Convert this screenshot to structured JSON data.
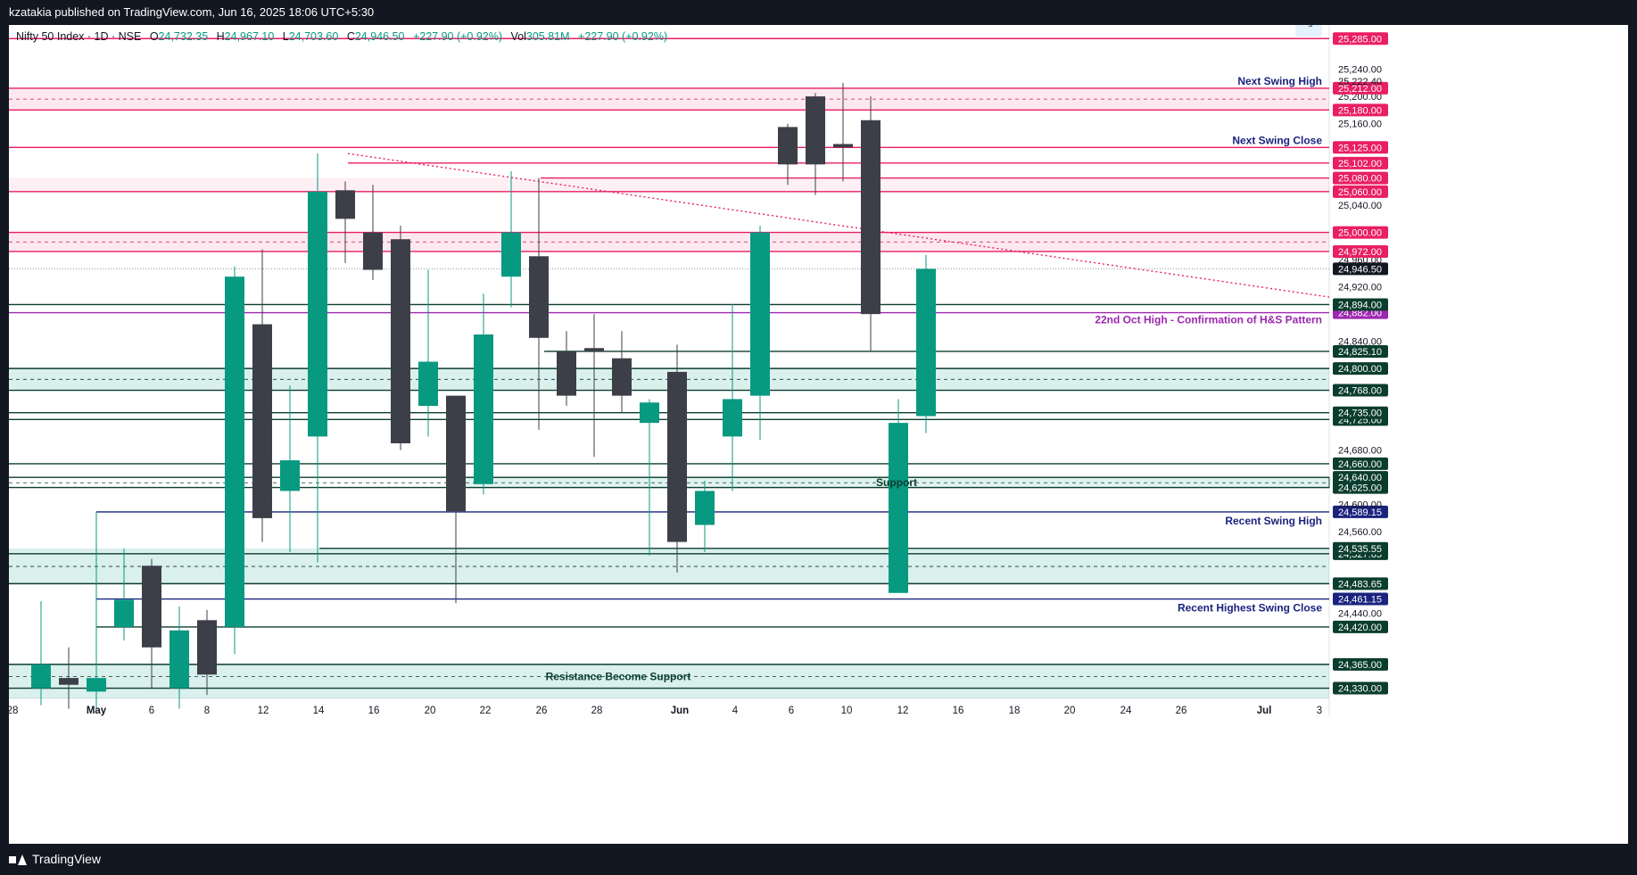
{
  "header": {
    "published_text": "kzatakia published on TradingView.com, Jun 16, 2025 18:06 UTC+5:30"
  },
  "legend": {
    "symbol": "Nifty 50 Index · 1D · NSE",
    "o_label": "O",
    "o_value": "24,732.35",
    "h_label": "H",
    "h_value": "24,967.10",
    "l_label": "L",
    "l_value": "24,703.60",
    "c_label": "C",
    "c_value": "24,946.50",
    "change": "+227.90 (+0.92%)",
    "vol_label": "Vol",
    "vol_value": "305.81M",
    "vol_change": "+227.90 (+0.92%)"
  },
  "footer": {
    "brand": "TradingView"
  },
  "colors": {
    "up": "#089981",
    "down": "#3d3f48",
    "resistance": "#e91e63",
    "support": "#0b3d2e",
    "swing": "#1a237e",
    "hs": "#9c27b0"
  },
  "chart_data": {
    "type": "candlestick",
    "y_axis_ticks": [
      24330,
      24365,
      24420,
      24440,
      24461.15,
      24483.65,
      24527.65,
      24535.55,
      24560,
      24589.15,
      24600,
      24625,
      24640,
      24660,
      24680,
      24725,
      24735,
      24768,
      24800,
      24825.1,
      24840,
      24882,
      24894,
      24920,
      24946.5,
      24960,
      24972,
      25000,
      25040,
      25060,
      25080,
      25102,
      25125,
      25160,
      25180,
      25200,
      25212,
      25222.4,
      25240,
      25285
    ],
    "y_axis_labels": [
      "24,330.00",
      "24,365.00",
      "24,420.00",
      "24,440.00",
      "24,461.15",
      "24,483.65",
      "24,527.65",
      "24,535.55",
      "24,560.00",
      "24,589.15",
      "24,600.00",
      "24,625.00",
      "24,640.00",
      "24,660.00",
      "24,680.00",
      "24,725.00",
      "24,735.00",
      "24,768.00",
      "24,800.00",
      "24,825.10",
      "24,840.00",
      "24,882.00",
      "24,894.00",
      "24,920.00",
      "24,946.50",
      "24,960.00",
      "24,972.00",
      "25,000.00",
      "25,040.00",
      "25,060.00",
      "25,080.00",
      "25,102.00",
      "25,125.00",
      "25,160.00",
      "25,180.00",
      "25,200.00",
      "25,212.00",
      "25,222.40",
      "25,240.00",
      "25,285.00"
    ],
    "x_labels": [
      "28",
      "May",
      "6",
      "8",
      "12",
      "14",
      "16",
      "20",
      "22",
      "26",
      "28",
      "Jun",
      "4",
      "6",
      "10",
      "12",
      "16",
      "18",
      "20",
      "24",
      "26",
      "Jul",
      "3"
    ],
    "candles": [
      {
        "d": "Apr 28",
        "o": 24330,
        "h": 24458,
        "l": 24305,
        "c": 24365
      },
      {
        "d": "Apr 29",
        "o": 24345,
        "h": 24390,
        "l": 24300,
        "c": 24335
      },
      {
        "d": "Apr 30",
        "o": 24325,
        "h": 24589,
        "l": 24300,
        "c": 24345
      },
      {
        "d": "May 2",
        "o": 24420,
        "h": 24535,
        "l": 24400,
        "c": 24460
      },
      {
        "d": "May 5",
        "o": 24510,
        "h": 24520,
        "l": 24330,
        "c": 24390
      },
      {
        "d": "May 6",
        "o": 24330,
        "h": 24450,
        "l": 24300,
        "c": 24415
      },
      {
        "d": "May 7",
        "o": 24430,
        "h": 24445,
        "l": 24320,
        "c": 24350
      },
      {
        "d": "May 8",
        "o": 24420,
        "h": 24950,
        "l": 24380,
        "c": 24935
      },
      {
        "d": "May 9",
        "o": 24865,
        "h": 24975,
        "l": 24545,
        "c": 24580
      },
      {
        "d": "May 12",
        "o": 24620,
        "h": 24775,
        "l": 24530,
        "c": 24665
      },
      {
        "d": "May 13",
        "o": 24700,
        "h": 25116,
        "l": 24515,
        "c": 25060
      },
      {
        "d": "May 14",
        "o": 25062,
        "h": 25075,
        "l": 24955,
        "c": 25020
      },
      {
        "d": "May 15",
        "o": 25000,
        "h": 25070,
        "l": 24930,
        "c": 24945
      },
      {
        "d": "May 16",
        "o": 24990,
        "h": 25010,
        "l": 24680,
        "c": 24690
      },
      {
        "d": "May 19",
        "o": 24745,
        "h": 24945,
        "l": 24700,
        "c": 24810
      },
      {
        "d": "May 20",
        "o": 24760,
        "h": 24760,
        "l": 24455,
        "c": 24590
      },
      {
        "d": "May 21",
        "o": 24630,
        "h": 24910,
        "l": 24615,
        "c": 24850
      },
      {
        "d": "May 22",
        "o": 24935,
        "h": 25090,
        "l": 24890,
        "c": 25000
      },
      {
        "d": "May 23",
        "o": 24965,
        "h": 25080,
        "l": 24710,
        "c": 24845
      },
      {
        "d": "May 26",
        "o": 24825,
        "h": 24855,
        "l": 24745,
        "c": 24760
      },
      {
        "d": "May 27",
        "o": 24830,
        "h": 24880,
        "l": 24670,
        "c": 24825
      },
      {
        "d": "May 28",
        "o": 24815,
        "h": 24855,
        "l": 24735,
        "c": 24760
      },
      {
        "d": "May 29",
        "o": 24720,
        "h": 24755,
        "l": 24525,
        "c": 24750
      },
      {
        "d": "May 30",
        "o": 24795,
        "h": 24835,
        "l": 24500,
        "c": 24545
      },
      {
        "d": "Jun 2",
        "o": 24570,
        "h": 24635,
        "l": 24530,
        "c": 24620
      },
      {
        "d": "Jun 3",
        "o": 24700,
        "h": 24895,
        "l": 24620,
        "c": 24755
      },
      {
        "d": "Jun 4",
        "o": 24760,
        "h": 25010,
        "l": 24695,
        "c": 25000
      },
      {
        "d": "Jun 5",
        "o": 25155,
        "h": 25160,
        "l": 25070,
        "c": 25100
      },
      {
        "d": "Jun 6",
        "o": 25200,
        "h": 25205,
        "l": 25055,
        "c": 25100
      },
      {
        "d": "Jun 9",
        "o": 25130,
        "h": 25220,
        "l": 25075,
        "c": 25125
      },
      {
        "d": "Jun 10",
        "o": 25165,
        "h": 25200,
        "l": 24825,
        "c": 24880
      },
      {
        "d": "Jun 11",
        "o": 24470,
        "h": 24755,
        "l": 24470,
        "c": 24720
      },
      {
        "d": "Jun 12",
        "o": 24730,
        "h": 24967,
        "l": 24705,
        "c": 24946.5
      }
    ],
    "levels": [
      {
        "price": 25285,
        "label": "25,285.00",
        "kind": "resistance"
      },
      {
        "price": 25212,
        "label": "25,212.00",
        "kind": "resistance"
      },
      {
        "price": 25180,
        "label": "25,180.00",
        "kind": "resistance"
      },
      {
        "price": 25125,
        "label": "25,125.00",
        "kind": "resistance"
      },
      {
        "price": 25102,
        "label": "25,102.00",
        "kind": "resistance"
      },
      {
        "price": 25080,
        "label": "25,080.00",
        "kind": "resistance"
      },
      {
        "price": 25060,
        "label": "25,060.00",
        "kind": "resistance"
      },
      {
        "price": 25000,
        "label": "25,000.00",
        "kind": "resistance"
      },
      {
        "price": 24972,
        "label": "24,972.00",
        "kind": "resistance"
      },
      {
        "price": 24946.5,
        "label": "24,946.50",
        "kind": "last"
      },
      {
        "price": 24894,
        "label": "24,894.00",
        "kind": "support"
      },
      {
        "price": 24882,
        "label": "24,882.00",
        "kind": "hs"
      },
      {
        "price": 24825.1,
        "label": "24,825.10",
        "kind": "support"
      },
      {
        "price": 24800,
        "label": "24,800.00",
        "kind": "support"
      },
      {
        "price": 24768,
        "label": "24,768.00",
        "kind": "support"
      },
      {
        "price": 24735,
        "label": "24,735.00",
        "kind": "support"
      },
      {
        "price": 24725,
        "label": "24,725.00",
        "kind": "support"
      },
      {
        "price": 24660,
        "label": "24,660.00",
        "kind": "support"
      },
      {
        "price": 24640,
        "label": "24,640.00",
        "kind": "support"
      },
      {
        "price": 24625,
        "label": "24,625.00",
        "kind": "support"
      },
      {
        "price": 24589.15,
        "label": "24,589.15",
        "kind": "swing"
      },
      {
        "price": 24535.55,
        "label": "24,535.55",
        "kind": "support"
      },
      {
        "price": 24527.65,
        "label": "24,527.65",
        "kind": "support"
      },
      {
        "price": 24483.65,
        "label": "24,483.65",
        "kind": "support"
      },
      {
        "price": 24461.15,
        "label": "24,461.15",
        "kind": "swing"
      },
      {
        "price": 24420,
        "label": "24,420.00",
        "kind": "support"
      },
      {
        "price": 24365,
        "label": "24,365.00",
        "kind": "support"
      },
      {
        "price": 24330,
        "label": "24,330.00",
        "kind": "support"
      }
    ],
    "annotations": [
      {
        "text": "Next Swing High",
        "price": 25222.4
      },
      {
        "text": "Next Swing Close",
        "price": 25125
      },
      {
        "text": "22nd Oct High - Confirmation of H&S Pattern",
        "price": 24882
      },
      {
        "text": "Support",
        "price": 24632
      },
      {
        "text": "Recent Swing High",
        "price": 24589.15
      },
      {
        "text": "Recent Highest Swing Close",
        "price": 24461.15
      },
      {
        "text": "Resistance Become Support",
        "price": 24347
      }
    ],
    "axis_tag": "25,222.40",
    "axis_tag_label": "High"
  }
}
